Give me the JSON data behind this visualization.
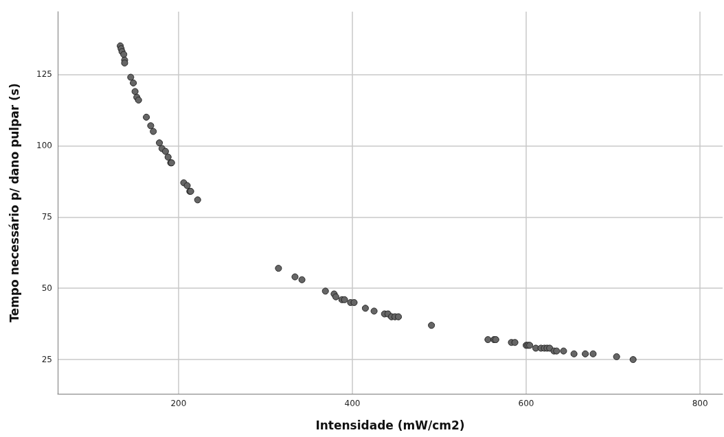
{
  "chart_data": {
    "type": "scatter",
    "xlabel": "Intensidade (mW/cm2)",
    "ylabel": "Tempo necessário p/ dano pulpar (s)",
    "xlim": [
      61,
      826
    ],
    "xticks": [
      200,
      400,
      600,
      800
    ],
    "ylim": [
      13,
      147
    ],
    "yticks": [
      25,
      50,
      75,
      100,
      125
    ],
    "grid": true,
    "marker": "circle",
    "series": [
      {
        "color": "#666666",
        "x": [
          133,
          134,
          135,
          137,
          138,
          138,
          145,
          148,
          150,
          152,
          154,
          163,
          168,
          171,
          178,
          181,
          185,
          188,
          191,
          192,
          206,
          210,
          213,
          214,
          222,
          315,
          334,
          342,
          369,
          379,
          381,
          388,
          391,
          398,
          402,
          415,
          425,
          437,
          441,
          445,
          449,
          453,
          491,
          556,
          563,
          565,
          583,
          587,
          600,
          602,
          604,
          611,
          617,
          621,
          624,
          627,
          632,
          635,
          643,
          655,
          668,
          677,
          704,
          723
        ],
        "values": [
          135,
          134,
          133,
          132,
          130,
          129,
          124,
          122,
          119,
          117,
          116,
          110,
          107,
          105,
          101,
          99,
          98,
          96,
          94,
          94,
          87,
          86,
          84,
          84,
          81,
          57,
          54,
          53,
          49,
          48,
          47,
          46,
          46,
          45,
          45,
          43,
          42,
          41,
          41,
          40,
          40,
          40,
          37,
          32,
          32,
          32,
          31,
          31,
          30,
          30,
          30,
          29,
          29,
          29,
          29,
          29,
          28,
          28,
          28,
          27,
          27,
          27,
          26,
          25
        ]
      }
    ]
  }
}
